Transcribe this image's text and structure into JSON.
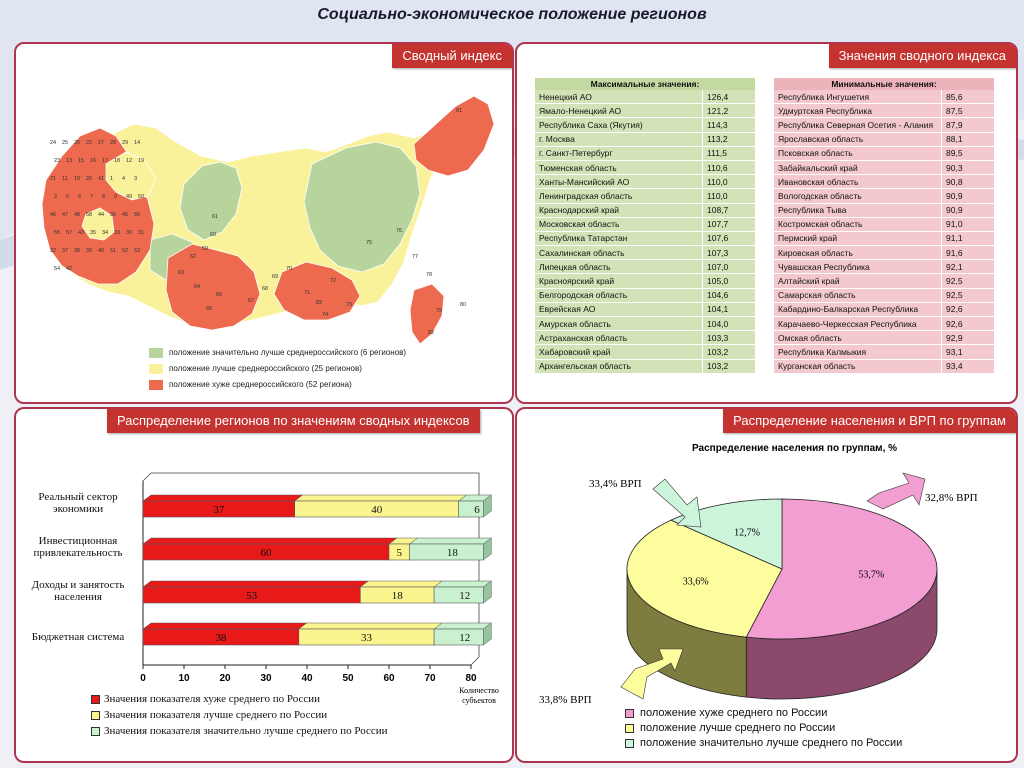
{
  "page": {
    "title": "Социально-экономическое положение регионов"
  },
  "map_panel": {
    "header": "Сводный индекс",
    "legend": [
      {
        "label": "положение значительно лучше среднероссийского (6 регионов)",
        "color": "#b7d49c"
      },
      {
        "label": "положение лучше среднероссийского  (25 регионов)",
        "color": "#faf29a"
      },
      {
        "label": "положение хуже среднероссийского (52 региона)",
        "color": "#ee6a4f"
      }
    ],
    "region_numbers": [
      "24",
      "25",
      "26",
      "22",
      "27",
      "28",
      "29",
      "14",
      "23",
      "13",
      "15",
      "16",
      "17",
      "18",
      "12",
      "19",
      "21",
      "11",
      "10",
      "20",
      "41",
      "1",
      "4",
      "3",
      "2",
      "5",
      "6",
      "7",
      "8",
      "9",
      "49",
      "50",
      "46",
      "47",
      "48",
      "58",
      "44",
      "36",
      "45",
      "56",
      "55",
      "57",
      "43",
      "35",
      "34",
      "33",
      "30",
      "31",
      "32",
      "37",
      "38",
      "39",
      "40",
      "51",
      "52",
      "53",
      "54",
      "42",
      "61",
      "60",
      "59",
      "62",
      "63",
      "64",
      "65",
      "66",
      "67",
      "68",
      "69",
      "70",
      "71",
      "72",
      "73",
      "74",
      "75",
      "76",
      "77",
      "78",
      "79",
      "80",
      "81",
      "82",
      "83"
    ]
  },
  "max_table": {
    "header": "Максимальные значения:",
    "rows": [
      {
        "name": "Ненецкий АО",
        "value": "126,4"
      },
      {
        "name": "Ямало-Ненецкий АО",
        "value": "121,2"
      },
      {
        "name": "Республика Саха (Якутия)",
        "value": "114,3"
      },
      {
        "name": "г. Москва",
        "value": "113,2"
      },
      {
        "name": "г. Санкт-Петербург",
        "value": "111,5"
      },
      {
        "name": "Тюменская область",
        "value": "110,6"
      },
      {
        "name": "Ханты-Мансийский АО",
        "value": "110,0"
      },
      {
        "name": "Ленинградская область",
        "value": "110,0"
      },
      {
        "name": "Краснодарский край",
        "value": "108,7"
      },
      {
        "name": "Московская область",
        "value": "107,7"
      },
      {
        "name": "Республика Татарстан",
        "value": "107,6"
      },
      {
        "name": "Сахалинская область",
        "value": "107,3"
      },
      {
        "name": "Липецкая область",
        "value": "107,0"
      },
      {
        "name": "Красноярский край",
        "value": "105,0"
      },
      {
        "name": "Белгородская область",
        "value": "104,6"
      },
      {
        "name": "Еврейская АО",
        "value": "104,1"
      },
      {
        "name": "Амурская область",
        "value": "104,0"
      },
      {
        "name": "Астраханская область",
        "value": "103,3"
      },
      {
        "name": "Хабаровский край",
        "value": "103,2"
      },
      {
        "name": "Архангельская область",
        "value": "103,2"
      }
    ]
  },
  "values_panel": {
    "header": "Значения сводного индекса"
  },
  "min_table": {
    "header": "Минимальные значения:",
    "rows": [
      {
        "name": "Республика Ингушетия",
        "value": "85,6"
      },
      {
        "name": "Удмуртская Республика",
        "value": "87,5"
      },
      {
        "name": "Республика Северная Осетия - Алания",
        "value": "87,9"
      },
      {
        "name": "Ярославская область",
        "value": "88,1"
      },
      {
        "name": "Псковская область",
        "value": "89,5"
      },
      {
        "name": "Забайкальский край",
        "value": "90,3"
      },
      {
        "name": "Ивановская область",
        "value": "90,8"
      },
      {
        "name": "Вологодская область",
        "value": "90,9"
      },
      {
        "name": "Республика Тыва",
        "value": "90,9"
      },
      {
        "name": "Костромская область",
        "value": "91,0"
      },
      {
        "name": "Пермский край",
        "value": "91,1"
      },
      {
        "name": "Кировская область",
        "value": "91,6"
      },
      {
        "name": "Чувашская Республика",
        "value": "92,1"
      },
      {
        "name": "Алтайский край",
        "value": "92,5"
      },
      {
        "name": "Самарская область",
        "value": "92,5"
      },
      {
        "name": "Кабардино-Балкарская Республика",
        "value": "92,6"
      },
      {
        "name": "Карачаево-Черкесская Республика",
        "value": "92,6"
      },
      {
        "name": "Омская область",
        "value": "92,9"
      },
      {
        "name": "Республика Калмыкия",
        "value": "93,1"
      },
      {
        "name": "Курганская область",
        "value": "93,4"
      }
    ]
  },
  "bar_panel": {
    "header": "Распределение регионов по значениям сводных индексов"
  },
  "pie_panel": {
    "header": "Распределение населения и ВРП по группам"
  },
  "chart_data": [
    {
      "type": "bar",
      "stacked": true,
      "orientation": "horizontal",
      "categories": [
        "Реальный сектор экономики",
        "Инвестиционная привлекательность",
        "Доходы и занятость населения",
        "Бюджетная система"
      ],
      "series": [
        {
          "name": "Значения показателя хуже среднего по России",
          "values": [
            37,
            60,
            53,
            38
          ],
          "color": "#e81919"
        },
        {
          "name": "Значения показателя лучше среднего по России",
          "values": [
            40,
            5,
            18,
            33
          ],
          "color": "#fbf58f"
        },
        {
          "name": "Значения показателя значительно лучше среднего по России",
          "values": [
            6,
            18,
            12,
            12
          ],
          "color": "#c9f0cf"
        }
      ],
      "xlabel": "Количество субъектов",
      "xticks": [
        "0",
        "10",
        "20",
        "30",
        "40",
        "50",
        "60",
        "70",
        "80"
      ],
      "xlim": [
        0,
        80
      ]
    },
    {
      "type": "pie",
      "title": "Распределение населения по группам, %",
      "slices": [
        {
          "label": "положение хуже среднего по России",
          "value": 53.7,
          "display": "53,7%",
          "color": "#f39ed3",
          "side": "#8b4a6b"
        },
        {
          "label": "положение лучше среднего по России",
          "value": 33.6,
          "display": "33,6%",
          "color": "#fdfd9e",
          "side": "#7c7d3e"
        },
        {
          "label": "положение значительно лучше среднего по России",
          "value": 12.7,
          "display": "12,7%",
          "color": "#ccf5dc",
          "side": "#6f8c7a"
        }
      ],
      "callouts": [
        "32,8% ВРП",
        "33,8% ВРП",
        "33,4% ВРП"
      ]
    }
  ]
}
